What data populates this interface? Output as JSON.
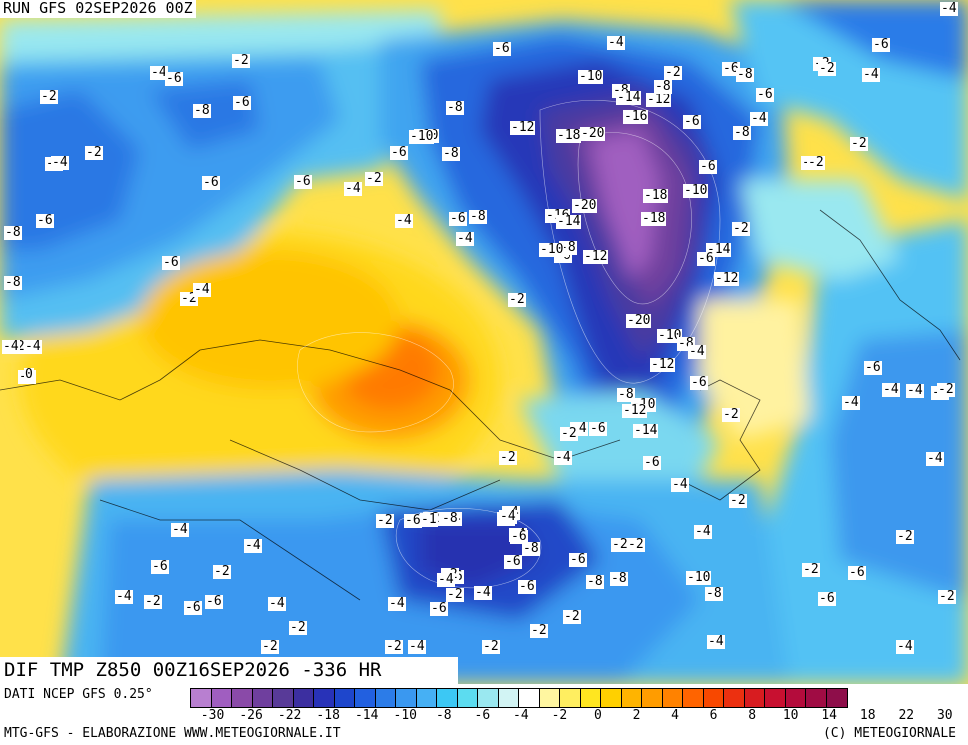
{
  "header": {
    "run_title": "RUN GFS 02SEP2026 00Z"
  },
  "field_title": "DIF TMP Z850 00Z16SEP2026 -336 HR",
  "footer": {
    "data_source": "DATI NCEP GFS 0.25°",
    "left_credit": "MTG-GFS - ELABORAZIONE WWW.METEOGIORNALE.IT",
    "right_credit": "(C) METEOGIORNALE"
  },
  "legend": {
    "colors": [
      "#b87fd0",
      "#a05ec0",
      "#8a4aa8",
      "#6f3f9e",
      "#583a98",
      "#3c2fa0",
      "#2832b8",
      "#1e46cc",
      "#2260e0",
      "#2c7ce8",
      "#3a98f0",
      "#46b0f4",
      "#3cc8f4",
      "#5cdcf0",
      "#9ae8f0",
      "#d2f4f4",
      "#ffffff",
      "#fff6a0",
      "#ffee60",
      "#ffe620",
      "#ffd000",
      "#ffb400",
      "#ff9c00",
      "#ff8200",
      "#ff6400",
      "#f84800",
      "#ec3010",
      "#d81c20",
      "#c81030",
      "#b40c3c",
      "#a00c44",
      "#8e0e4a"
    ],
    "tick_labels": [
      "-30",
      "-26",
      "-22",
      "-18",
      "-14",
      "-10",
      "-8",
      "-6",
      "-4",
      "-2",
      "0",
      "2",
      "4",
      "6",
      "8",
      "10",
      "14",
      "18",
      "22",
      "30"
    ]
  },
  "contour_labels": [
    {
      "t": "-4"
    },
    {
      "t": "-6"
    },
    {
      "t": "-2"
    },
    {
      "t": "-6"
    },
    {
      "t": "-10"
    },
    {
      "t": "-8"
    },
    {
      "t": "-2"
    },
    {
      "t": "-6"
    },
    {
      "t": "-8"
    },
    {
      "t": "-4"
    },
    {
      "t": "-2"
    },
    {
      "t": "-2"
    },
    {
      "t": "-4"
    },
    {
      "t": "-4"
    },
    {
      "t": "-6"
    },
    {
      "t": "-8"
    },
    {
      "t": "-6"
    },
    {
      "t": "-10"
    },
    {
      "t": "-12"
    },
    {
      "t": "-18"
    },
    {
      "t": "-20"
    },
    {
      "t": "-16"
    },
    {
      "t": "-14"
    },
    {
      "t": "-12"
    },
    {
      "t": "-8"
    },
    {
      "t": "-6"
    },
    {
      "t": "-4"
    },
    {
      "t": "-8"
    },
    {
      "t": "-6"
    },
    {
      "t": "-2"
    },
    {
      "t": "-10"
    },
    {
      "t": "-18"
    },
    {
      "t": "-6"
    },
    {
      "t": "-2"
    },
    {
      "t": "-2"
    },
    {
      "t": "-10"
    },
    {
      "t": "-6"
    },
    {
      "t": "-8"
    },
    {
      "t": "-6"
    },
    {
      "t": "-2"
    },
    {
      "t": "-4"
    },
    {
      "t": "-6"
    },
    {
      "t": "-4"
    },
    {
      "t": "-6"
    },
    {
      "t": "-8"
    },
    {
      "t": "-2"
    },
    {
      "t": "-4"
    },
    {
      "t": "-2"
    },
    {
      "t": "-2"
    },
    {
      "t": "-4"
    },
    {
      "t": "-6"
    },
    {
      "t": "-8"
    },
    {
      "t": "-20"
    },
    {
      "t": "-16"
    },
    {
      "t": "-14"
    },
    {
      "t": "-18"
    },
    {
      "t": "-6"
    },
    {
      "t": "-4"
    },
    {
      "t": "-8"
    },
    {
      "t": "-10"
    },
    {
      "t": "-12"
    },
    {
      "t": "-14"
    },
    {
      "t": "-6"
    },
    {
      "t": "-12"
    },
    {
      "t": "-8"
    },
    {
      "t": "-6"
    },
    {
      "t": "-2"
    },
    {
      "t": "-6"
    },
    {
      "t": "-2"
    },
    {
      "t": "-4"
    },
    {
      "t": "-8"
    },
    {
      "t": "-20"
    },
    {
      "t": "-10"
    },
    {
      "t": "-8"
    },
    {
      "t": "-4"
    },
    {
      "t": "-6"
    },
    {
      "t": "-12"
    },
    {
      "t": "-6"
    },
    {
      "t": "-4"
    },
    {
      "t": "-8"
    },
    {
      "t": "-10"
    },
    {
      "t": "-12"
    },
    {
      "t": "-2"
    },
    {
      "t": "-4"
    },
    {
      "t": "-6"
    },
    {
      "t": "-14"
    },
    {
      "t": "-6"
    },
    {
      "t": "-2"
    },
    {
      "t": "-4"
    },
    {
      "t": "-2"
    },
    {
      "t": "-4"
    },
    {
      "t": "-2"
    },
    {
      "t": "-6"
    },
    {
      "t": "-4"
    },
    {
      "t": "-2"
    },
    {
      "t": "-4"
    },
    {
      "t": "-2"
    },
    {
      "t": "-4"
    },
    {
      "t": "-6"
    },
    {
      "t": "-4"
    },
    {
      "t": "-2"
    },
    {
      "t": "-4"
    },
    {
      "t": "-1"
    },
    {
      "t": "-8"
    },
    {
      "t": "-4"
    },
    {
      "t": "-6"
    },
    {
      "t": "-8"
    },
    {
      "t": "-6"
    },
    {
      "t": "-2"
    },
    {
      "t": "-4"
    },
    {
      "t": "-6"
    },
    {
      "t": "-8"
    },
    {
      "t": "-6"
    },
    {
      "t": "-2"
    },
    {
      "t": "-4"
    },
    {
      "t": "-2"
    },
    {
      "t": "-2"
    },
    {
      "t": "-4"
    },
    {
      "t": "-8"
    },
    {
      "t": "-6"
    },
    {
      "t": "-2"
    },
    {
      "t": "-4"
    },
    {
      "t": "-10"
    },
    {
      "t": "-8"
    },
    {
      "t": "-4"
    },
    {
      "t": "-6"
    },
    {
      "t": "-2"
    },
    {
      "t": "-4"
    },
    {
      "t": "-6"
    },
    {
      "t": "-6"
    },
    {
      "t": "-4"
    },
    {
      "t": "-2"
    },
    {
      "t": "-2"
    },
    {
      "t": "-2"
    },
    {
      "t": "-4"
    },
    {
      "t": "-2"
    },
    {
      "t": "-2"
    },
    {
      "t": "-4"
    },
    {
      "t": "-2"
    },
    {
      "t": "-6"
    },
    {
      "t": "-4"
    },
    {
      "t": "-2"
    },
    {
      "t": "-6"
    },
    {
      "t": "-2"
    },
    {
      "t": "-4"
    },
    {
      "t": "-2"
    },
    {
      "t": "-2"
    },
    {
      "t": "-4"
    },
    {
      "t": "-4"
    },
    {
      "t": "-2"
    },
    {
      "t": "0"
    },
    {
      "t": "-4"
    },
    {
      "t": "-2"
    },
    {
      "t": "-4"
    }
  ]
}
